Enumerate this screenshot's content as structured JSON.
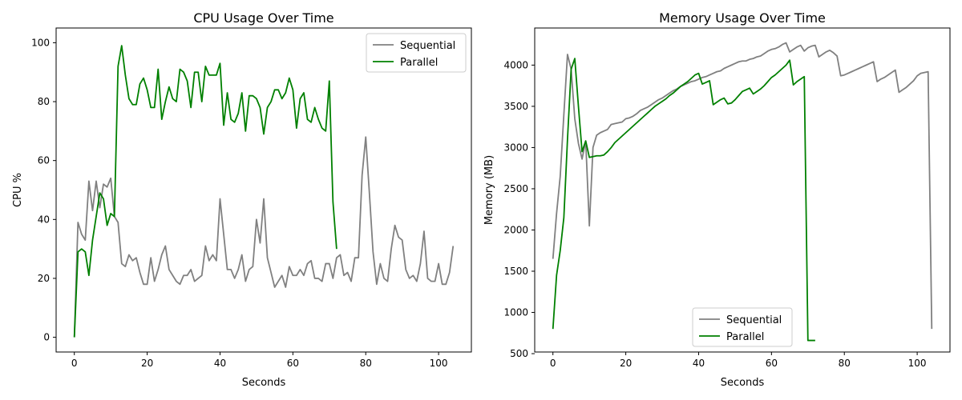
{
  "chart_data": [
    {
      "type": "line",
      "title": "CPU Usage Over Time",
      "xlabel": "Seconds",
      "ylabel": "CPU %",
      "xlim": [
        -5,
        109
      ],
      "ylim": [
        -5,
        105
      ],
      "xticks": [
        0,
        20,
        40,
        60,
        80,
        100
      ],
      "yticks": [
        0,
        20,
        40,
        60,
        80,
        100
      ],
      "grid": false,
      "legend": "top-right",
      "series": [
        {
          "name": "Sequential",
          "color": "#808080",
          "x": [
            0,
            1,
            2,
            3,
            4,
            5,
            6,
            7,
            8,
            9,
            10,
            11,
            12,
            13,
            14,
            15,
            16,
            17,
            18,
            19,
            20,
            21,
            22,
            23,
            24,
            25,
            26,
            27,
            28,
            29,
            30,
            31,
            32,
            33,
            34,
            35,
            36,
            37,
            38,
            39,
            40,
            41,
            42,
            43,
            44,
            45,
            46,
            47,
            48,
            49,
            50,
            51,
            52,
            53,
            54,
            55,
            56,
            57,
            58,
            59,
            60,
            61,
            62,
            63,
            64,
            65,
            66,
            67,
            68,
            69,
            70,
            71,
            72,
            73,
            74,
            75,
            76,
            77,
            78,
            79,
            80,
            81,
            82,
            83,
            84,
            85,
            86,
            87,
            88,
            89,
            90,
            91,
            92,
            93,
            94,
            95,
            96,
            97,
            98,
            99,
            100,
            101,
            102,
            103,
            104
          ],
          "y": [
            0,
            39,
            35,
            33,
            53,
            43,
            53,
            44,
            52,
            51,
            54,
            41,
            39,
            25,
            24,
            28,
            26,
            27,
            22,
            18,
            18,
            27,
            19,
            23,
            28,
            31,
            23,
            21,
            19,
            18,
            21,
            21,
            23,
            19,
            20,
            21,
            31,
            26,
            28,
            26,
            47,
            35,
            23,
            23,
            20,
            23,
            28,
            19,
            23,
            24,
            40,
            32,
            47,
            27,
            22,
            17,
            19,
            21,
            17,
            24,
            21,
            21,
            23,
            21,
            25,
            26,
            20,
            20,
            19,
            25,
            25,
            20,
            27,
            28,
            21,
            22,
            19,
            27,
            27,
            55,
            68,
            49,
            29,
            18,
            25,
            20,
            19,
            30,
            38,
            34,
            33,
            23,
            20,
            21,
            19,
            25,
            36,
            20,
            19,
            19,
            25,
            18,
            18,
            22,
            31
          ]
        },
        {
          "name": "Parallel",
          "color": "#008000",
          "x": [
            0,
            1,
            2,
            3,
            4,
            5,
            6,
            7,
            8,
            9,
            10,
            11,
            12,
            13,
            14,
            15,
            16,
            17,
            18,
            19,
            20,
            21,
            22,
            23,
            24,
            25,
            26,
            27,
            28,
            29,
            30,
            31,
            32,
            33,
            34,
            35,
            36,
            37,
            38,
            39,
            40,
            41,
            42,
            43,
            44,
            45,
            46,
            47,
            48,
            49,
            50,
            51,
            52,
            53,
            54,
            55,
            56,
            57,
            58,
            59,
            60,
            61,
            62,
            63,
            64,
            65,
            66,
            67,
            68,
            69,
            70,
            71,
            72
          ],
          "y": [
            0,
            29,
            30,
            29,
            21,
            33,
            41,
            49,
            47,
            38,
            42,
            41,
            92,
            99,
            89,
            81,
            79,
            79,
            86,
            88,
            84,
            78,
            78,
            91,
            74,
            80,
            85,
            81,
            80,
            91,
            90,
            87,
            78,
            90,
            90,
            80,
            92,
            89,
            89,
            89,
            93,
            72,
            83,
            74,
            73,
            76,
            83,
            70,
            82,
            82,
            81,
            78,
            69,
            78,
            80,
            84,
            84,
            81,
            83,
            88,
            84,
            71,
            81,
            83,
            74,
            73,
            78,
            74,
            71,
            70,
            87,
            46,
            30
          ]
        }
      ]
    },
    {
      "type": "line",
      "title": "Memory Usage Over Time",
      "xlabel": "Seconds",
      "ylabel": "Memory (MB)",
      "xlim": [
        -5,
        109
      ],
      "ylim": [
        520,
        4450
      ],
      "xticks": [
        0,
        20,
        40,
        60,
        80,
        100
      ],
      "yticks": [
        500,
        1000,
        1500,
        2000,
        2500,
        3000,
        3500,
        4000
      ],
      "grid": false,
      "legend": "bottom-center",
      "series": [
        {
          "name": "Sequential",
          "color": "#808080",
          "x": [
            0,
            1,
            2,
            3,
            4,
            5,
            6,
            7,
            8,
            9,
            10,
            11,
            12,
            13,
            14,
            15,
            16,
            17,
            18,
            19,
            20,
            21,
            22,
            23,
            24,
            25,
            26,
            27,
            28,
            29,
            30,
            31,
            32,
            33,
            34,
            35,
            36,
            37,
            38,
            39,
            40,
            41,
            42,
            43,
            44,
            45,
            46,
            47,
            48,
            49,
            50,
            51,
            52,
            53,
            54,
            55,
            56,
            57,
            58,
            59,
            60,
            61,
            62,
            63,
            64,
            65,
            66,
            67,
            68,
            69,
            70,
            71,
            72,
            73,
            74,
            75,
            76,
            77,
            78,
            79,
            80,
            81,
            82,
            83,
            84,
            85,
            86,
            87,
            88,
            89,
            90,
            91,
            92,
            93,
            94,
            95,
            96,
            97,
            98,
            99,
            100,
            101,
            102,
            103,
            104
          ],
          "y": [
            1650,
            2200,
            2650,
            3400,
            4130,
            3950,
            3350,
            3050,
            2860,
            3080,
            2050,
            3000,
            3150,
            3180,
            3200,
            3220,
            3280,
            3290,
            3300,
            3310,
            3350,
            3360,
            3380,
            3410,
            3450,
            3470,
            3490,
            3520,
            3550,
            3580,
            3600,
            3630,
            3660,
            3690,
            3710,
            3740,
            3760,
            3780,
            3800,
            3810,
            3830,
            3850,
            3860,
            3880,
            3900,
            3920,
            3930,
            3960,
            3980,
            4000,
            4020,
            4040,
            4050,
            4050,
            4070,
            4080,
            4100,
            4110,
            4140,
            4170,
            4190,
            4200,
            4220,
            4250,
            4270,
            4160,
            4190,
            4220,
            4240,
            4170,
            4210,
            4230,
            4240,
            4100,
            4130,
            4160,
            4180,
            4150,
            4110,
            3870,
            3880,
            3900,
            3920,
            3940,
            3960,
            3980,
            4000,
            4020,
            4040,
            3800,
            3830,
            3850,
            3880,
            3910,
            3940,
            3670,
            3700,
            3730,
            3770,
            3810,
            3870,
            3900,
            3910,
            3920,
            800
          ]
        },
        {
          "name": "Parallel",
          "color": "#008000",
          "x": [
            0,
            1,
            2,
            3,
            4,
            5,
            6,
            7,
            8,
            9,
            10,
            11,
            12,
            13,
            14,
            15,
            16,
            17,
            18,
            19,
            20,
            21,
            22,
            23,
            24,
            25,
            26,
            27,
            28,
            29,
            30,
            31,
            32,
            33,
            34,
            35,
            36,
            37,
            38,
            39,
            40,
            41,
            42,
            43,
            44,
            45,
            46,
            47,
            48,
            49,
            50,
            51,
            52,
            53,
            54,
            55,
            56,
            57,
            58,
            59,
            60,
            61,
            62,
            63,
            64,
            65,
            66,
            67,
            68,
            69,
            70,
            71,
            72
          ],
          "y": [
            800,
            1450,
            1750,
            2150,
            3100,
            3950,
            4080,
            3500,
            2950,
            3080,
            2880,
            2890,
            2900,
            2900,
            2910,
            2950,
            3000,
            3060,
            3100,
            3140,
            3180,
            3220,
            3260,
            3300,
            3340,
            3380,
            3420,
            3460,
            3500,
            3530,
            3560,
            3590,
            3630,
            3660,
            3700,
            3740,
            3770,
            3800,
            3840,
            3880,
            3900,
            3770,
            3790,
            3810,
            3520,
            3550,
            3580,
            3600,
            3530,
            3540,
            3580,
            3630,
            3680,
            3700,
            3720,
            3650,
            3680,
            3710,
            3750,
            3800,
            3850,
            3880,
            3920,
            3960,
            4000,
            4060,
            3760,
            3800,
            3830,
            3860,
            660,
            660,
            660
          ]
        }
      ]
    }
  ]
}
